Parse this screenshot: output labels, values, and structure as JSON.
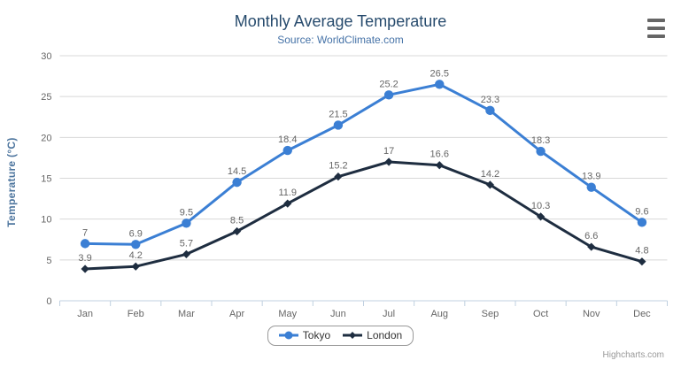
{
  "chart_data": {
    "type": "line",
    "title": "Monthly Average Temperature",
    "subtitle": "Source: WorldClimate.com",
    "categories": [
      "Jan",
      "Feb",
      "Mar",
      "Apr",
      "May",
      "Jun",
      "Jul",
      "Aug",
      "Sep",
      "Oct",
      "Nov",
      "Dec"
    ],
    "xlabel": "",
    "ylabel": "Temperature (°C)",
    "ylim": [
      0,
      30
    ],
    "ytick_step": 5,
    "grid": true,
    "legend_position": "bottom-center",
    "data_labels": true,
    "series": [
      {
        "name": "Tokyo",
        "marker": "circle",
        "color": "#3b7fd4",
        "values": [
          7,
          6.9,
          9.5,
          14.5,
          18.4,
          21.5,
          25.2,
          26.5,
          23.3,
          18.3,
          13.9,
          9.6
        ]
      },
      {
        "name": "London",
        "marker": "diamond",
        "color": "#1e2d40",
        "values": [
          3.9,
          4.2,
          5.7,
          8.5,
          11.9,
          15.2,
          17,
          16.6,
          14.2,
          10.3,
          6.6,
          4.8
        ]
      }
    ]
  },
  "credits": {
    "label": "Highcharts.com"
  },
  "export_menu": {
    "icon": "hamburger-icon"
  },
  "colors": {
    "title": "#274b6d",
    "subtitle": "#4572a7",
    "y_axis_title": "#4d759e",
    "axis_labels": "#666666",
    "data_labels": "#666666",
    "gridline": "#d8d8d8",
    "axis_line": "#c0d0e0",
    "legend_border": "#999999",
    "legend_text": "#333333",
    "credits": "#999999",
    "menu_icon": "#666666",
    "background": "#ffffff"
  }
}
